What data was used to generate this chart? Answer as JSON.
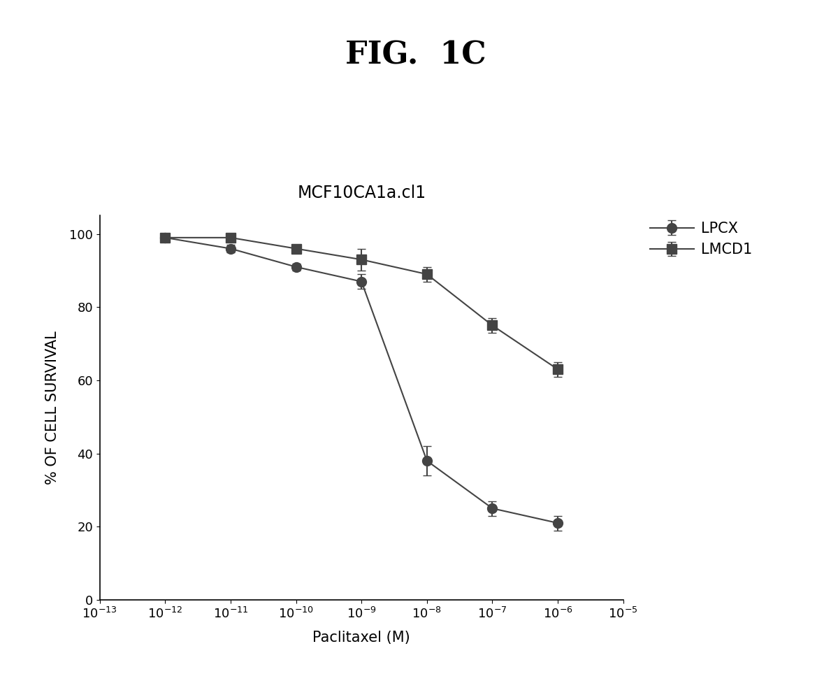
{
  "title": "FIG.  1C",
  "subtitle": "MCF10CA1a.cl1",
  "xlabel": "Paclitaxel (M)",
  "ylabel": "% OF CELL SURVIVAL",
  "lpcx": {
    "x": [
      1e-12,
      1e-11,
      1e-10,
      1e-09,
      1e-08,
      1e-07,
      1e-06
    ],
    "y": [
      99,
      96,
      91,
      87,
      38,
      25,
      21
    ],
    "yerr": [
      1,
      1,
      1,
      2,
      4,
      2,
      2
    ],
    "label": "LPCX",
    "color": "#444444",
    "marker": "o",
    "markersize": 10
  },
  "lmcd1": {
    "x": [
      1e-12,
      1e-11,
      1e-10,
      1e-09,
      1e-08,
      1e-07,
      1e-06
    ],
    "y": [
      99,
      99,
      96,
      93,
      89,
      75,
      63
    ],
    "yerr": [
      1,
      1,
      1,
      3,
      2,
      2,
      2
    ],
    "label": "LMCD1",
    "color": "#444444",
    "marker": "s",
    "markersize": 10
  },
  "xlim": [
    1e-13,
    1e-05
  ],
  "ylim": [
    0,
    105
  ],
  "yticks": [
    0,
    20,
    40,
    60,
    80,
    100
  ],
  "background_color": "#ffffff",
  "title_fontsize": 32,
  "subtitle_fontsize": 17,
  "axis_label_fontsize": 15,
  "tick_fontsize": 13,
  "legend_fontsize": 15
}
